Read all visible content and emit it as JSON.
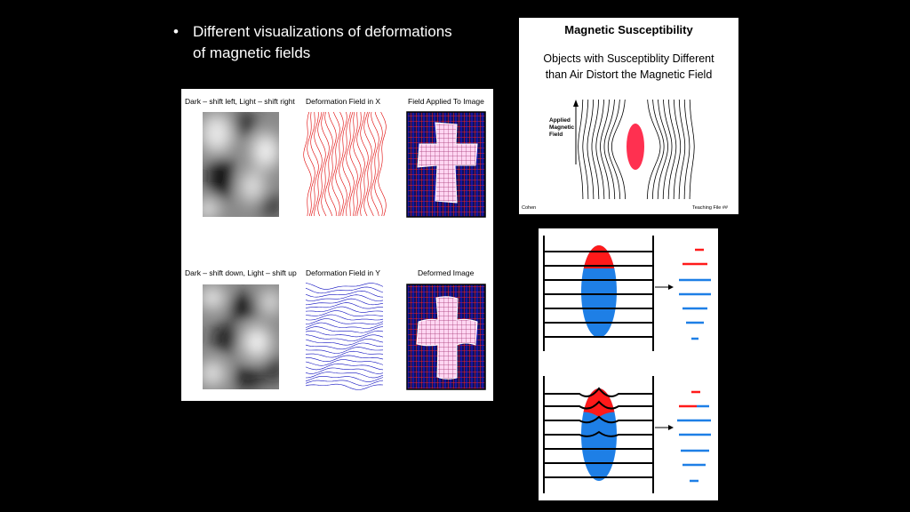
{
  "slide": {
    "bullet_symbol": "•",
    "bullet_text": "Different visualizations of deformations of magnetic fields"
  },
  "figure_deformation": {
    "labels": {
      "top_left": "Dark – shift left, Light – shift right",
      "top_middle": "Deformation Field in X",
      "top_right": "Field Applied To Image",
      "bottom_left": "Dark – shift down, Light – shift up",
      "bottom_middle": "Deformation Field in Y",
      "bottom_right": "Deformed Image"
    },
    "colors": {
      "x_field": "#e00000",
      "y_field": "#1010c0",
      "grid_red": "#ff2020",
      "grid_blue": "#2020ff"
    }
  },
  "figure_susceptibility": {
    "title": "Magnetic Susceptibility",
    "subtitle_line1": "Objects with Susceptiblity Different",
    "subtitle_line2": "than Air Distort the Magnetic Field",
    "applied_line1": "Applied",
    "applied_line2": "Magnetic",
    "applied_line3": "Field",
    "footer_left": "Cohen",
    "footer_right": "Teaching File ##",
    "colors": {
      "object": "#ff3050"
    }
  },
  "figure_slices": {
    "colors": {
      "red": "#ff1a1a",
      "blue": "#1e7fe6"
    }
  }
}
